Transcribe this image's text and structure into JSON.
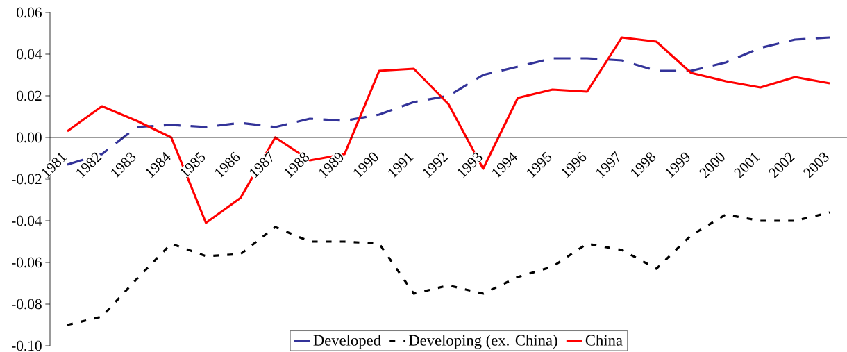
{
  "chart_data": {
    "type": "line",
    "categories": [
      "1981",
      "1982",
      "1983",
      "1984",
      "1985",
      "1986",
      "1987",
      "1988",
      "1989",
      "1990",
      "1991",
      "1992",
      "1993",
      "1994",
      "1995",
      "1996",
      "1997",
      "1998",
      "1999",
      "2000",
      "2001",
      "2002",
      "2003"
    ],
    "series": [
      {
        "name": "Developed",
        "color": "#333399",
        "line_style": "dashed",
        "values": [
          -0.013,
          -0.008,
          0.005,
          0.006,
          0.005,
          0.007,
          0.005,
          0.009,
          0.008,
          0.011,
          0.017,
          0.02,
          0.03,
          0.034,
          0.038,
          0.038,
          0.037,
          0.032,
          0.032,
          0.036,
          0.043,
          0.047,
          0.048
        ]
      },
      {
        "name": "Developing (ex. China)",
        "color": "#000000",
        "line_style": "dotted",
        "values": [
          -0.09,
          -0.086,
          -0.068,
          -0.051,
          -0.057,
          -0.056,
          -0.043,
          -0.05,
          -0.05,
          -0.051,
          -0.075,
          -0.071,
          -0.075,
          -0.067,
          -0.062,
          -0.051,
          -0.054,
          -0.063,
          -0.047,
          -0.037,
          -0.04,
          -0.04,
          -0.036
        ]
      },
      {
        "name": "China",
        "color": "#ff0000",
        "line_style": "solid",
        "values": [
          0.003,
          0.015,
          0.008,
          0.0,
          -0.041,
          -0.029,
          0.0,
          -0.011,
          -0.008,
          0.032,
          0.033,
          0.016,
          -0.015,
          0.019,
          0.023,
          0.022,
          0.048,
          0.046,
          0.031,
          0.027,
          0.024,
          0.029,
          0.026
        ]
      }
    ],
    "ylim": [
      -0.1,
      0.06
    ],
    "yticks": [
      {
        "value": -0.1,
        "label": "-0.10"
      },
      {
        "value": -0.08,
        "label": "-0.08"
      },
      {
        "value": -0.06,
        "label": "-0.06"
      },
      {
        "value": -0.04,
        "label": "-0.04"
      },
      {
        "value": -0.02,
        "label": "-0.02"
      },
      {
        "value": 0,
        "label": "0.00"
      },
      {
        "value": 0.02,
        "label": "0.02"
      },
      {
        "value": 0.04,
        "label": "0.04"
      },
      {
        "value": 0.06,
        "label": "0.06"
      }
    ],
    "grid": false,
    "legend": "bottom"
  }
}
